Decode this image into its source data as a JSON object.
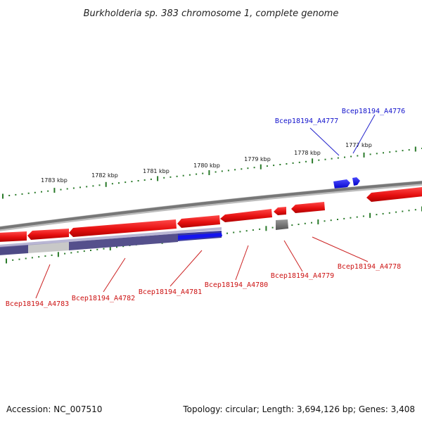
{
  "title": "Burkholderia sp. 383 chromosome 1, complete genome",
  "footer": {
    "accession": "Accession: NC_007510",
    "topology": "Topology: circular; Length: 3,694,126 bp; Genes: 3,408"
  },
  "ruler": {
    "labels": [
      "1783 kbp",
      "1782 kbp",
      "1781 kbp",
      "1780 kbp",
      "1779 kbp",
      "1778 kbp",
      "1777 kbp"
    ]
  },
  "genes_forward": [
    {
      "id": "Bcep18194_A4777",
      "color": "#1010dd"
    },
    {
      "id": "Bcep18194_A4776",
      "color": "#1010dd"
    }
  ],
  "genes_reverse": [
    {
      "id": "Bcep18194_A4783",
      "color": "#dd1111"
    },
    {
      "id": "Bcep18194_A4782",
      "color": "#dd1111"
    },
    {
      "id": "Bcep18194_A4781",
      "color": "#dd1111"
    },
    {
      "id": "Bcep18194_A4780",
      "color": "#dd1111"
    },
    {
      "id": "Bcep18194_A4779",
      "color": "#dd1111"
    },
    {
      "id": "Bcep18194_A4778",
      "color": "#dd1111"
    }
  ],
  "colors": {
    "cds_reverse": "#ee1111",
    "cds_forward": "#1111ee",
    "backbone": "#777777",
    "ticks": "#2a7a2a",
    "blast_track": "#55508a",
    "blast_light": "#c4c4c4",
    "pseudo": "#666666"
  }
}
